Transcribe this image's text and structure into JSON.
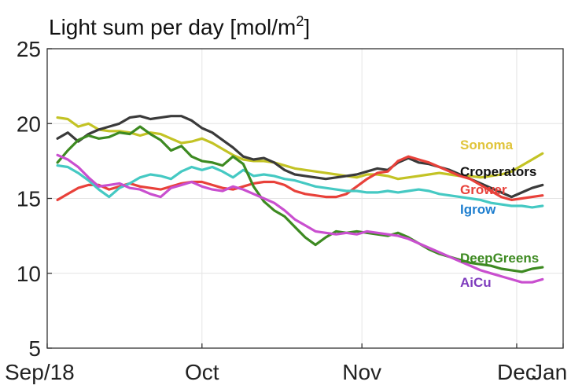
{
  "chart_data": {
    "type": "line",
    "title": "Light sum per day [mol/m",
    "title_superscript": "2",
    "title_suffix": "]",
    "xlabel": "",
    "ylabel": "",
    "ylim": [
      5,
      25
    ],
    "yticks": [
      5,
      10,
      15,
      20,
      25
    ],
    "ytick_labels": [
      "5",
      "10",
      "15",
      "20",
      "25"
    ],
    "xlim": [
      0,
      100
    ],
    "xticks": [
      0,
      30,
      61,
      91,
      100
    ],
    "xtick_labels": [
      "Sep/18",
      "Oct",
      "Nov",
      "Dec",
      "Jan"
    ],
    "grid": true,
    "legend_placement": "right, inline at line ends",
    "series": [
      {
        "name": "Sonoma",
        "color": "#c3c325",
        "label_color": "#e0c43a",
        "x": [
          2,
          4,
          6,
          8,
          10,
          12,
          14,
          16,
          18,
          20,
          22,
          24,
          26,
          28,
          30,
          32,
          34,
          36,
          38,
          40,
          42,
          44,
          46,
          48,
          50,
          52,
          54,
          56,
          58,
          60,
          62,
          64,
          66,
          68,
          70,
          72,
          74,
          76,
          78,
          80,
          82,
          84,
          86,
          88,
          90,
          92,
          94,
          96
        ],
        "values": [
          20.4,
          20.3,
          19.8,
          20.0,
          19.6,
          19.5,
          19.5,
          19.4,
          19.2,
          19.4,
          19.3,
          19.0,
          18.7,
          18.8,
          19.0,
          18.7,
          18.3,
          17.9,
          17.6,
          17.5,
          17.5,
          17.4,
          17.2,
          17.0,
          16.9,
          16.8,
          16.7,
          16.6,
          16.5,
          16.4,
          16.6,
          16.6,
          16.5,
          16.3,
          16.4,
          16.5,
          16.6,
          16.7,
          16.6,
          16.5,
          16.5,
          16.4,
          16.5,
          16.6,
          16.8,
          17.2,
          17.6,
          18.0
        ]
      },
      {
        "name": "Croperators",
        "color": "#3a3a3a",
        "label_color": "#111111",
        "x": [
          2,
          4,
          6,
          8,
          10,
          12,
          14,
          16,
          18,
          20,
          22,
          24,
          26,
          28,
          30,
          32,
          34,
          36,
          38,
          40,
          42,
          44,
          46,
          48,
          50,
          52,
          54,
          56,
          58,
          60,
          62,
          64,
          66,
          68,
          70,
          72,
          74,
          76,
          78,
          80,
          82,
          84,
          86,
          88,
          90,
          92,
          94,
          96
        ],
        "values": [
          19.0,
          19.4,
          18.8,
          19.3,
          19.6,
          19.8,
          20.0,
          20.4,
          20.5,
          20.3,
          20.4,
          20.5,
          20.5,
          20.2,
          19.7,
          19.4,
          18.9,
          18.4,
          17.8,
          17.6,
          17.7,
          17.4,
          16.9,
          16.6,
          16.5,
          16.4,
          16.3,
          16.4,
          16.5,
          16.6,
          16.8,
          17.0,
          16.9,
          17.4,
          17.7,
          17.4,
          17.3,
          17.1,
          16.9,
          16.6,
          16.3,
          16.0,
          15.7,
          15.4,
          15.1,
          15.4,
          15.7,
          15.9
        ]
      },
      {
        "name": "Grower",
        "color": "#e8413a",
        "label_color": "#e8413a",
        "x": [
          2,
          4,
          6,
          8,
          10,
          12,
          14,
          16,
          18,
          20,
          22,
          24,
          26,
          28,
          30,
          32,
          34,
          36,
          38,
          40,
          42,
          44,
          46,
          48,
          50,
          52,
          54,
          56,
          58,
          60,
          62,
          64,
          66,
          68,
          70,
          72,
          74,
          76,
          78,
          80,
          82,
          84,
          86,
          88,
          90,
          92,
          94,
          96
        ],
        "values": [
          14.9,
          15.3,
          15.7,
          15.9,
          15.9,
          15.6,
          15.8,
          16.0,
          15.8,
          15.7,
          15.6,
          15.8,
          16.0,
          16.1,
          16.1,
          15.9,
          15.7,
          15.6,
          15.8,
          16.0,
          16.1,
          16.1,
          15.9,
          15.5,
          15.3,
          15.2,
          15.1,
          15.1,
          15.3,
          15.8,
          16.3,
          16.7,
          16.8,
          17.5,
          17.8,
          17.6,
          17.4,
          17.1,
          16.8,
          16.5,
          16.3,
          15.9,
          15.5,
          15.1,
          14.9,
          15.0,
          15.1,
          15.2
        ]
      },
      {
        "name": "Igrow",
        "color": "#45c9c3",
        "label_color": "#1f7fcf",
        "x": [
          2,
          4,
          6,
          8,
          10,
          12,
          14,
          16,
          18,
          20,
          22,
          24,
          26,
          28,
          30,
          32,
          34,
          36,
          38,
          40,
          42,
          44,
          46,
          48,
          50,
          52,
          54,
          56,
          58,
          60,
          62,
          64,
          66,
          68,
          70,
          72,
          74,
          76,
          78,
          80,
          82,
          84,
          86,
          88,
          90,
          92,
          94,
          96
        ],
        "values": [
          17.2,
          17.1,
          16.7,
          16.2,
          15.6,
          15.1,
          15.7,
          16.0,
          16.4,
          16.6,
          16.5,
          16.3,
          16.8,
          17.1,
          16.9,
          17.1,
          16.8,
          16.4,
          16.9,
          16.5,
          16.6,
          16.5,
          16.3,
          16.2,
          16.0,
          15.8,
          15.7,
          15.6,
          15.5,
          15.5,
          15.4,
          15.4,
          15.5,
          15.4,
          15.5,
          15.6,
          15.5,
          15.3,
          15.2,
          15.1,
          15.0,
          14.9,
          14.7,
          14.6,
          14.5,
          14.5,
          14.4,
          14.5
        ]
      },
      {
        "name": "DeepGreens",
        "color": "#3d8a21",
        "label_color": "#3d8a21",
        "x": [
          2,
          4,
          6,
          8,
          10,
          12,
          14,
          16,
          18,
          20,
          22,
          24,
          26,
          28,
          30,
          32,
          34,
          36,
          38,
          40,
          42,
          44,
          46,
          48,
          50,
          52,
          54,
          56,
          58,
          60,
          62,
          64,
          66,
          68,
          70,
          72,
          74,
          76,
          78,
          80,
          82,
          84,
          86,
          88,
          90,
          92,
          94,
          96
        ],
        "values": [
          17.4,
          18.2,
          18.9,
          19.2,
          19.0,
          19.1,
          19.4,
          19.3,
          19.8,
          19.3,
          18.9,
          18.2,
          18.5,
          17.8,
          17.5,
          17.4,
          17.2,
          17.8,
          17.3,
          15.8,
          14.8,
          14.2,
          13.8,
          13.1,
          12.4,
          11.9,
          12.4,
          12.8,
          12.7,
          12.8,
          12.7,
          12.6,
          12.5,
          12.7,
          12.4,
          12.0,
          11.6,
          11.3,
          11.1,
          10.9,
          10.7,
          10.6,
          10.5,
          10.3,
          10.2,
          10.1,
          10.3,
          10.4
        ]
      },
      {
        "name": "AiCu",
        "color": "#c94fcf",
        "label_color": "#7e3bbd",
        "x": [
          2,
          4,
          6,
          8,
          10,
          12,
          14,
          16,
          18,
          20,
          22,
          24,
          26,
          28,
          30,
          32,
          34,
          36,
          38,
          40,
          42,
          44,
          46,
          48,
          50,
          52,
          54,
          56,
          58,
          60,
          62,
          64,
          66,
          68,
          70,
          72,
          74,
          76,
          78,
          80,
          82,
          84,
          86,
          88,
          90,
          92,
          94,
          96
        ],
        "values": [
          17.9,
          17.6,
          17.1,
          16.4,
          15.8,
          15.9,
          16.0,
          15.7,
          15.6,
          15.3,
          15.1,
          15.7,
          15.9,
          16.1,
          15.8,
          15.6,
          15.5,
          15.8,
          15.6,
          15.3,
          15.0,
          14.7,
          14.2,
          13.6,
          13.2,
          12.8,
          12.7,
          12.6,
          12.7,
          12.6,
          12.8,
          12.7,
          12.6,
          12.5,
          12.3,
          12.0,
          11.7,
          11.4,
          11.1,
          10.8,
          10.5,
          10.2,
          10.0,
          9.8,
          9.6,
          9.4,
          9.4,
          9.6
        ]
      }
    ]
  }
}
